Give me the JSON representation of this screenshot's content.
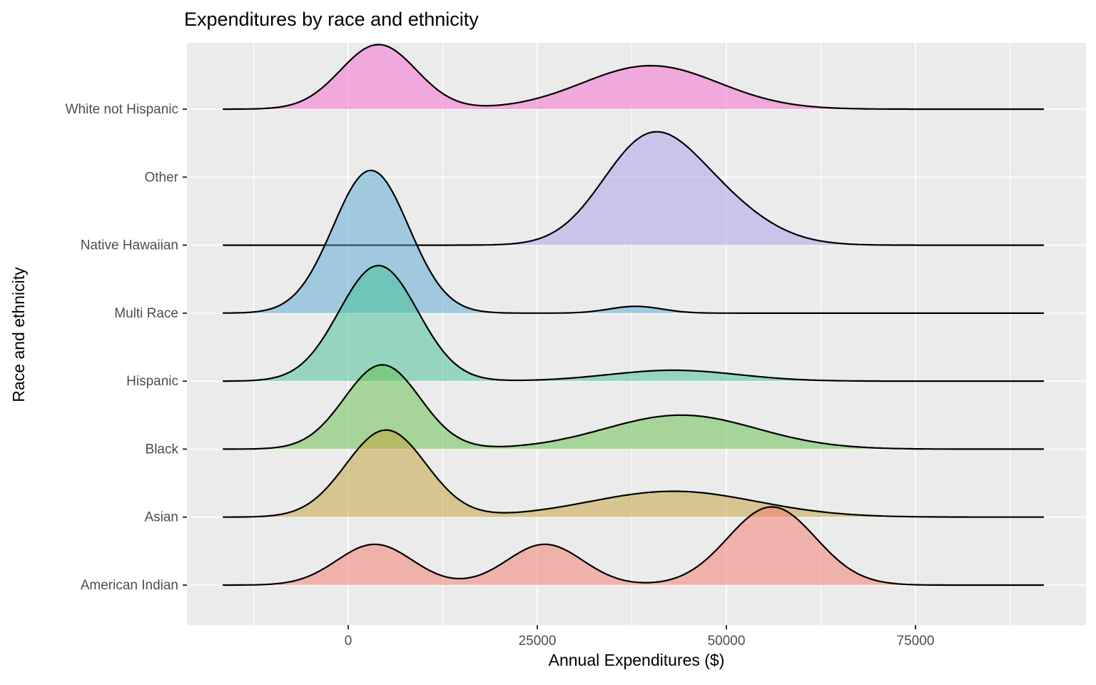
{
  "chart_data": {
    "type": "ridgeline",
    "title": "Expenditures by race and ethnicity",
    "xlabel": "Annual Expenditures ($)",
    "ylabel": "Race and ethnicity",
    "x_range": [
      -16500,
      92000
    ],
    "x_ticks": [
      {
        "value": 0,
        "label": "0"
      },
      {
        "value": 25000,
        "label": "25000"
      },
      {
        "value": 50000,
        "label": "50000"
      },
      {
        "value": 75000,
        "label": "75000"
      }
    ],
    "x_minor_ticks": [
      -12500,
      12500,
      37500,
      62500,
      87500
    ],
    "categories_top_to_bottom": [
      "White not Hispanic",
      "Other",
      "Native Hawaiian",
      "Multi Race",
      "Hispanic",
      "Black",
      "Asian",
      "American Indian"
    ],
    "panel_bg": "#EBEBEB",
    "grid_color": "#FFFFFF",
    "line_color": "#000000",
    "tick_color": "#333333",
    "axis_text_color": "#4D4D4D",
    "fill_opacity": 0.5,
    "series": [
      {
        "name": "White not Hispanic",
        "color": "#F567CD",
        "apparent_fill": "#F0A9DC",
        "components": [
          {
            "mean": 4000,
            "sd": 5000,
            "height": 0.95
          },
          {
            "mean": 40000,
            "sd": 9000,
            "height": 0.64
          }
        ]
      },
      {
        "name": "Other",
        "color": null,
        "apparent_fill": null,
        "components": []
      },
      {
        "name": "Native Hawaiian",
        "color": "#AD9BEB",
        "apparent_fill": "#CCC3EB",
        "components": [
          {
            "mean": 39000,
            "sd": 6000,
            "height": 1.25
          },
          {
            "mean": 47000,
            "sd": 7000,
            "height": 0.7
          }
        ]
      },
      {
        "name": "Multi Race",
        "color": "#55A7D3",
        "apparent_fill": "#A0C9DF",
        "components": [
          {
            "mean": 3000,
            "sd": 5000,
            "height": 2.1
          },
          {
            "mean": 38000,
            "sd": 3500,
            "height": 0.1
          }
        ]
      },
      {
        "name": "Hispanic",
        "color": "#3FBF96",
        "apparent_fill": "#9DD4BD",
        "components": [
          {
            "mean": 4000,
            "sd": 5200,
            "height": 1.7
          },
          {
            "mean": 43000,
            "sd": 8500,
            "height": 0.16
          }
        ]
      },
      {
        "name": "Black",
        "color": "#63BD47",
        "apparent_fill": "#A7D499",
        "components": [
          {
            "mean": 4500,
            "sd": 5000,
            "height": 1.24
          },
          {
            "mean": 44000,
            "sd": 10000,
            "height": 0.5
          }
        ]
      },
      {
        "name": "Asian",
        "color": "#C19F37",
        "apparent_fill": "#D6C591",
        "components": [
          {
            "mean": 5000,
            "sd": 5300,
            "height": 1.28
          },
          {
            "mean": 43000,
            "sd": 11000,
            "height": 0.38
          }
        ]
      },
      {
        "name": "American Indian",
        "color": "#F3796B",
        "apparent_fill": "#EFB2AB",
        "components": [
          {
            "mean": 3500,
            "sd": 5000,
            "height": 0.6
          },
          {
            "mean": 26000,
            "sd": 5000,
            "height": 0.6
          },
          {
            "mean": 56000,
            "sd": 5800,
            "height": 1.15
          }
        ]
      }
    ]
  }
}
